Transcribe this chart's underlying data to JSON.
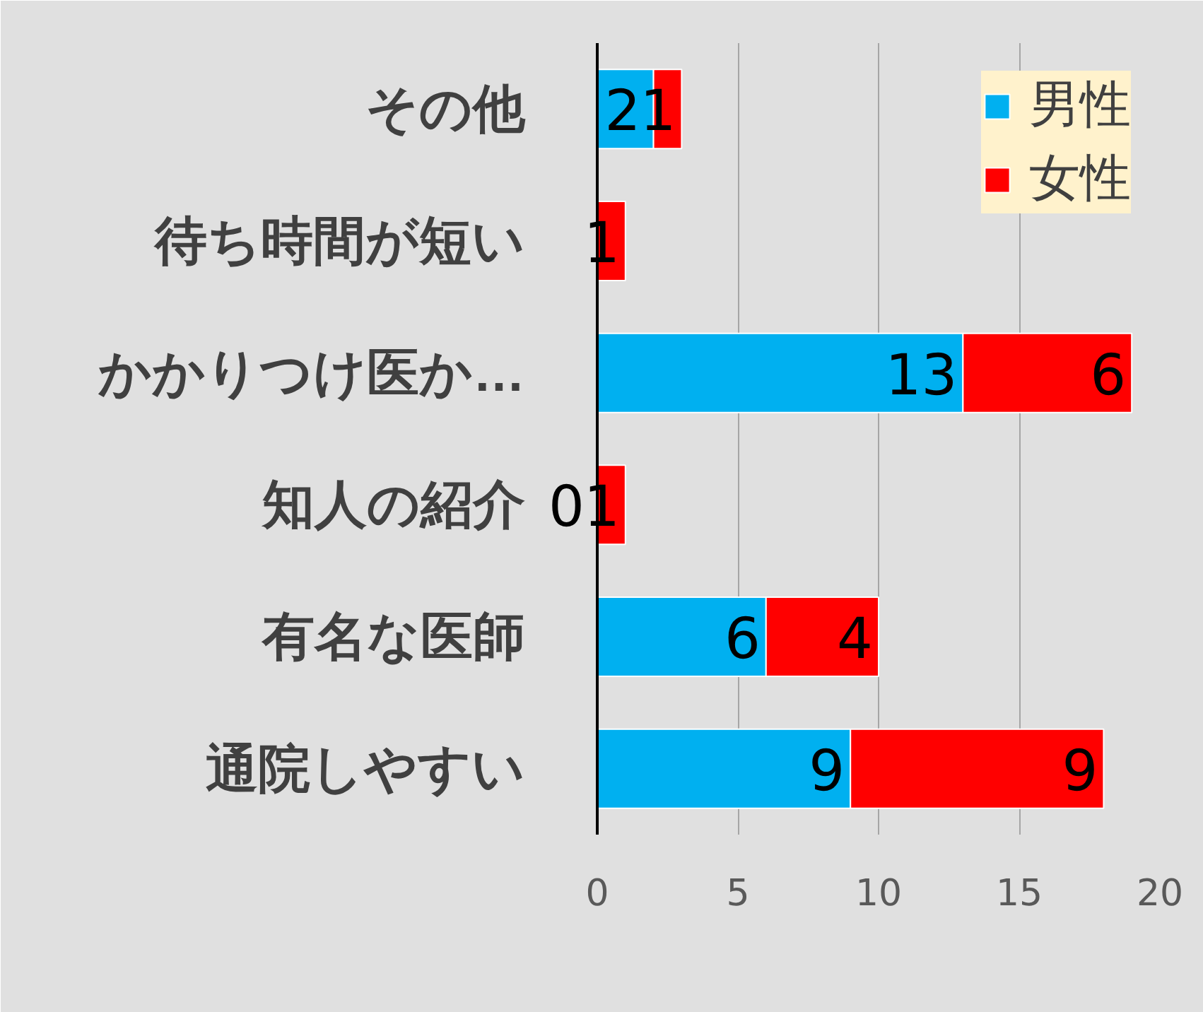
{
  "chart_data": {
    "type": "bar",
    "orientation": "horizontal",
    "stacked": true,
    "categories": [
      "その他",
      "待ち時間が短い",
      "かかりつけ医か…",
      "知人の紹介",
      "有名な医師",
      "通院しやすい"
    ],
    "series": [
      {
        "name": "男性",
        "color": "#00b0f0",
        "values": [
          2,
          null,
          13,
          0,
          6,
          9
        ]
      },
      {
        "name": "女性",
        "color": "#ff0000",
        "values": [
          1,
          1,
          6,
          1,
          4,
          9
        ]
      }
    ],
    "xlim": [
      0,
      20
    ],
    "xticks": [
      0,
      5,
      10,
      15,
      20
    ],
    "grid": "x",
    "legend": "top right",
    "data_labels": true
  }
}
